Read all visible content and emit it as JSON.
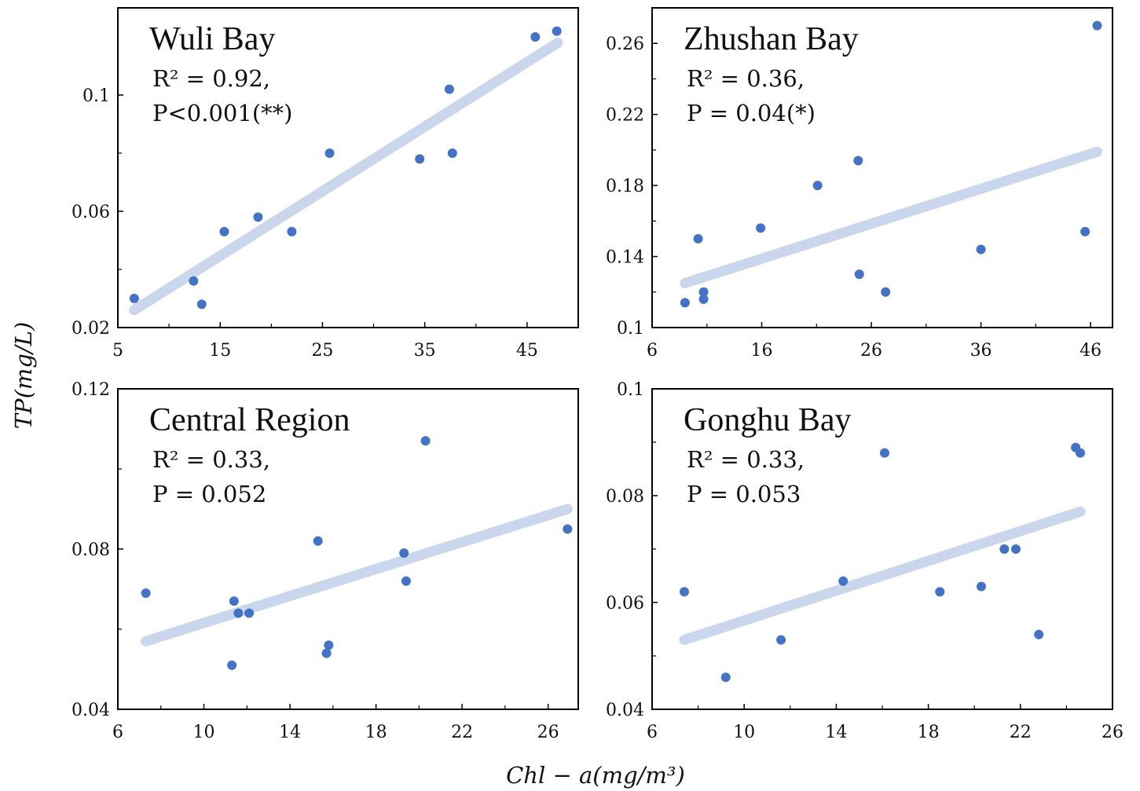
{
  "figure": {
    "ylabel": "TP(mg/L)",
    "xlabel": "Chl − a(mg/m³)"
  },
  "chart_data": [
    {
      "type": "scatter",
      "title": "Wuli Bay",
      "r2_label": "R² = 0.92,",
      "p_label": "P<0.001(**)",
      "xlim": [
        5,
        50
      ],
      "ylim": [
        0.02,
        0.13
      ],
      "xticks": [
        5,
        15,
        25,
        35,
        45
      ],
      "yticks": [
        0.02,
        0.06,
        0.1
      ],
      "x_tick_labels": [
        "5",
        "15",
        "25",
        "35",
        "45"
      ],
      "y_tick_labels": [
        "0.02",
        "0.06",
        "0.1"
      ],
      "points": [
        [
          6.6,
          0.03
        ],
        [
          12.4,
          0.036
        ],
        [
          13.2,
          0.028
        ],
        [
          15.4,
          0.053
        ],
        [
          18.7,
          0.058
        ],
        [
          22.0,
          0.053
        ],
        [
          25.7,
          0.08
        ],
        [
          34.5,
          0.078
        ],
        [
          37.4,
          0.102
        ],
        [
          37.7,
          0.08
        ],
        [
          45.8,
          0.12
        ],
        [
          47.9,
          0.122
        ]
      ],
      "fit": [
        [
          6.6,
          0.026
        ],
        [
          48.0,
          0.118
        ]
      ],
      "point_color": "#4472c4",
      "fit_color": "#c9d6ec"
    },
    {
      "type": "scatter",
      "title": "Zhushan Bay",
      "r2_label": "R² = 0.36,",
      "p_label": "P = 0.04(*)",
      "xlim": [
        6,
        48
      ],
      "ylim": [
        0.1,
        0.28
      ],
      "xticks": [
        6,
        16,
        26,
        36,
        46
      ],
      "yticks": [
        0.1,
        0.14,
        0.18,
        0.22,
        0.26
      ],
      "x_tick_labels": [
        "6",
        "16",
        "26",
        "36",
        "46"
      ],
      "y_tick_labels": [
        "0.1",
        "0.14",
        "0.18",
        "0.22",
        "0.26"
      ],
      "points": [
        [
          9.0,
          0.114
        ],
        [
          10.2,
          0.15
        ],
        [
          10.7,
          0.12
        ],
        [
          10.7,
          0.116
        ],
        [
          15.9,
          0.156
        ],
        [
          21.1,
          0.18
        ],
        [
          24.8,
          0.194
        ],
        [
          24.9,
          0.13
        ],
        [
          27.3,
          0.12
        ],
        [
          36.0,
          0.144
        ],
        [
          45.5,
          0.154
        ],
        [
          46.6,
          0.27
        ]
      ],
      "fit": [
        [
          9.0,
          0.125
        ],
        [
          46.6,
          0.199
        ]
      ],
      "point_color": "#4472c4",
      "fit_color": "#c9d6ec"
    },
    {
      "type": "scatter",
      "title": "Central Region",
      "r2_label": "R² = 0.33,",
      "p_label": "P = 0.052",
      "xlim": [
        6,
        27.4
      ],
      "ylim": [
        0.04,
        0.12
      ],
      "xticks": [
        6,
        10,
        14,
        18,
        22,
        26
      ],
      "yticks": [
        0.04,
        0.08,
        0.12
      ],
      "x_tick_labels": [
        "6",
        "10",
        "14",
        "18",
        "22",
        "26"
      ],
      "y_tick_labels": [
        "0.04",
        "0.08",
        "0.12"
      ],
      "points": [
        [
          7.3,
          0.069
        ],
        [
          11.3,
          0.051
        ],
        [
          11.4,
          0.067
        ],
        [
          11.6,
          0.064
        ],
        [
          12.1,
          0.064
        ],
        [
          15.3,
          0.082
        ],
        [
          15.7,
          0.054
        ],
        [
          15.8,
          0.056
        ],
        [
          19.3,
          0.079
        ],
        [
          19.4,
          0.072
        ],
        [
          20.3,
          0.107
        ],
        [
          26.9,
          0.085
        ]
      ],
      "fit": [
        [
          7.3,
          0.057
        ],
        [
          26.9,
          0.09
        ]
      ],
      "point_color": "#4472c4",
      "fit_color": "#c9d6ec"
    },
    {
      "type": "scatter",
      "title": "Gonghu Bay",
      "r2_label": "R² = 0.33,",
      "p_label": "P = 0.053",
      "xlim": [
        6,
        26
      ],
      "ylim": [
        0.04,
        0.1
      ],
      "xticks": [
        6,
        10,
        14,
        18,
        22,
        26
      ],
      "yticks": [
        0.04,
        0.06,
        0.08,
        0.1
      ],
      "x_tick_labels": [
        "6",
        "10",
        "14",
        "18",
        "22",
        "26"
      ],
      "y_tick_labels": [
        "0.04",
        "0.06",
        "0.08",
        "0.1"
      ],
      "points": [
        [
          7.4,
          0.062
        ],
        [
          9.2,
          0.046
        ],
        [
          11.6,
          0.053
        ],
        [
          14.3,
          0.064
        ],
        [
          16.1,
          0.088
        ],
        [
          18.5,
          0.062
        ],
        [
          20.3,
          0.063
        ],
        [
          21.3,
          0.07
        ],
        [
          21.8,
          0.07
        ],
        [
          22.8,
          0.054
        ],
        [
          24.4,
          0.089
        ],
        [
          24.6,
          0.088
        ]
      ],
      "fit": [
        [
          7.4,
          0.053
        ],
        [
          24.6,
          0.077
        ]
      ],
      "point_color": "#4472c4",
      "fit_color": "#c9d6ec"
    }
  ]
}
